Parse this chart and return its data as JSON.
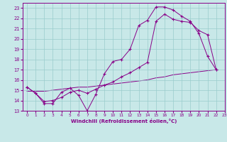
{
  "line1_x": [
    0,
    1,
    2,
    3,
    4,
    5,
    6,
    7,
    8,
    9,
    10,
    11,
    12,
    13,
    14,
    15,
    16,
    17,
    18,
    19,
    20,
    21,
    22
  ],
  "line1_y": [
    15.3,
    14.7,
    13.7,
    13.7,
    14.8,
    15.2,
    14.5,
    13.0,
    14.6,
    16.6,
    17.8,
    18.0,
    19.0,
    21.3,
    21.8,
    23.1,
    23.1,
    22.8,
    22.2,
    21.7,
    20.5,
    18.3,
    17.0
  ],
  "line2_x": [
    0,
    1,
    2,
    3,
    4,
    5,
    6,
    7,
    8,
    9,
    10,
    11,
    12,
    13,
    14,
    15,
    16,
    17,
    18,
    19,
    20,
    21,
    22
  ],
  "line2_y": [
    15.3,
    14.7,
    13.9,
    14.0,
    14.3,
    14.8,
    15.0,
    14.7,
    15.1,
    15.5,
    15.8,
    16.3,
    16.7,
    17.2,
    17.7,
    21.7,
    22.4,
    21.9,
    21.7,
    21.6,
    20.8,
    20.4,
    17.0
  ],
  "line3_x": [
    0,
    1,
    2,
    3,
    4,
    5,
    6,
    7,
    8,
    9,
    10,
    11,
    12,
    13,
    14,
    15,
    16,
    17,
    18,
    19,
    20,
    21,
    22
  ],
  "line3_y": [
    14.9,
    14.9,
    14.9,
    15.0,
    15.1,
    15.2,
    15.3,
    15.3,
    15.4,
    15.5,
    15.6,
    15.7,
    15.8,
    15.9,
    16.0,
    16.2,
    16.3,
    16.5,
    16.6,
    16.7,
    16.8,
    16.9,
    17.0
  ],
  "color": "#880088",
  "bg_color": "#c8e8e8",
  "grid_color": "#99cccc",
  "xlabel": "Windchill (Refroidissement éolien,°C)",
  "xlim": [
    -0.5,
    23
  ],
  "ylim": [
    13,
    23.5
  ],
  "xticks": [
    0,
    1,
    2,
    3,
    4,
    5,
    6,
    7,
    8,
    9,
    10,
    11,
    12,
    13,
    14,
    15,
    16,
    17,
    18,
    19,
    20,
    21,
    22,
    23
  ],
  "yticks": [
    13,
    14,
    15,
    16,
    17,
    18,
    19,
    20,
    21,
    22,
    23
  ]
}
